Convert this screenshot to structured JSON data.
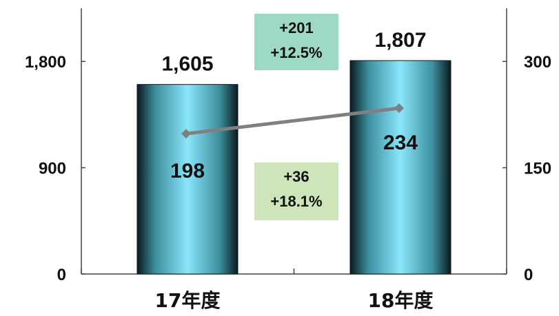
{
  "chart_data": {
    "type": "bar+line",
    "categories": [
      "17年度",
      "18年度"
    ],
    "bars": {
      "values": [
        1605,
        1807
      ],
      "labels": [
        "1,605",
        "1,807"
      ],
      "axis": "left",
      "color": "#8ae6fa"
    },
    "line": {
      "values": [
        198,
        234
      ],
      "labels": [
        "198",
        "234"
      ],
      "axis": "right",
      "color": "#808080"
    },
    "left_axis": {
      "ylim": [
        0,
        2250
      ],
      "ticks": [
        0,
        900,
        1800
      ],
      "tick_labels": [
        "0",
        "900",
        "1,800"
      ]
    },
    "right_axis": {
      "ylim": [
        0,
        375
      ],
      "ticks": [
        0,
        150,
        300
      ],
      "tick_labels": [
        "0",
        "150",
        "300"
      ]
    },
    "annotations": [
      {
        "lines": [
          "+201",
          "+12.5%"
        ],
        "color": "#9dd9c6"
      },
      {
        "lines": [
          "+36",
          "+18.1%"
        ],
        "color": "#cde5b8"
      }
    ],
    "grid": false
  }
}
